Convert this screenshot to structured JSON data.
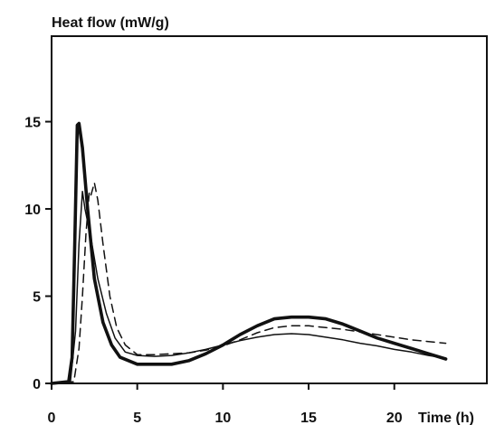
{
  "chart_data": {
    "type": "line",
    "title": "",
    "ylabel": "Heat flow (mW/g)",
    "xlabel": "Time (h)",
    "xlim": [
      0,
      25.4
    ],
    "ylim": [
      0,
      19.9
    ],
    "x_ticks": [
      "0",
      "5",
      "10",
      "15",
      "20"
    ],
    "x_tick_values": [
      0,
      5,
      10,
      15,
      20
    ],
    "y_ticks": [
      "0",
      "5",
      "10",
      "15"
    ],
    "y_tick_values": [
      0,
      5,
      10,
      15
    ],
    "grid": false,
    "legend": "none",
    "series": [
      {
        "style": "thick-solid",
        "points": [
          [
            0,
            0
          ],
          [
            1,
            0.1
          ],
          [
            1.2,
            1.5
          ],
          [
            1.35,
            8
          ],
          [
            1.5,
            14.8
          ],
          [
            1.6,
            14.9
          ],
          [
            1.8,
            13.5
          ],
          [
            2.1,
            10
          ],
          [
            2.5,
            6
          ],
          [
            3,
            3.5
          ],
          [
            3.5,
            2.2
          ],
          [
            4,
            1.5
          ],
          [
            5,
            1.1
          ],
          [
            6,
            1.1
          ],
          [
            7,
            1.1
          ],
          [
            8,
            1.3
          ],
          [
            9,
            1.7
          ],
          [
            10,
            2.2
          ],
          [
            11,
            2.8
          ],
          [
            12,
            3.3
          ],
          [
            13,
            3.7
          ],
          [
            14,
            3.8
          ],
          [
            15,
            3.8
          ],
          [
            16,
            3.7
          ],
          [
            17,
            3.4
          ],
          [
            18,
            3
          ],
          [
            19,
            2.6
          ],
          [
            20,
            2.3
          ],
          [
            21,
            2
          ],
          [
            22,
            1.7
          ],
          [
            23,
            1.4
          ]
        ]
      },
      {
        "style": "thin-solid",
        "points": [
          [
            0,
            0
          ],
          [
            1.1,
            0.1
          ],
          [
            1.4,
            3
          ],
          [
            1.6,
            8
          ],
          [
            1.8,
            11
          ],
          [
            1.95,
            10
          ],
          [
            2.3,
            8.3
          ],
          [
            2.7,
            6
          ],
          [
            3.2,
            4
          ],
          [
            3.7,
            2.6
          ],
          [
            4.3,
            1.8
          ],
          [
            5,
            1.6
          ],
          [
            6,
            1.55
          ],
          [
            7,
            1.6
          ],
          [
            8,
            1.75
          ],
          [
            9,
            1.95
          ],
          [
            10,
            2.2
          ],
          [
            11,
            2.45
          ],
          [
            12,
            2.65
          ],
          [
            13,
            2.8
          ],
          [
            14,
            2.85
          ],
          [
            15,
            2.8
          ],
          [
            16,
            2.65
          ],
          [
            17,
            2.5
          ],
          [
            18,
            2.3
          ],
          [
            19,
            2.15
          ],
          [
            20,
            1.95
          ],
          [
            21,
            1.8
          ],
          [
            22,
            1.6
          ],
          [
            23,
            1.45
          ]
        ]
      },
      {
        "style": "dashed",
        "points": [
          [
            0,
            0
          ],
          [
            1.3,
            0.1
          ],
          [
            1.6,
            2
          ],
          [
            1.8,
            5
          ],
          [
            2,
            8.5
          ],
          [
            2.2,
            11
          ],
          [
            2.3,
            10.8
          ],
          [
            2.5,
            11.5
          ],
          [
            2.7,
            10.5
          ],
          [
            3,
            8
          ],
          [
            3.4,
            5
          ],
          [
            3.8,
            3.2
          ],
          [
            4.3,
            2.2
          ],
          [
            5,
            1.65
          ],
          [
            6,
            1.65
          ],
          [
            7,
            1.7
          ],
          [
            8,
            1.75
          ],
          [
            9,
            1.9
          ],
          [
            10,
            2.15
          ],
          [
            11,
            2.5
          ],
          [
            12,
            2.9
          ],
          [
            13,
            3.2
          ],
          [
            14,
            3.3
          ],
          [
            15,
            3.3
          ],
          [
            16,
            3.2
          ],
          [
            17,
            3.1
          ],
          [
            18,
            2.95
          ],
          [
            19,
            2.8
          ],
          [
            20,
            2.65
          ],
          [
            21,
            2.5
          ],
          [
            22,
            2.4
          ],
          [
            23,
            2.3
          ]
        ]
      }
    ]
  }
}
